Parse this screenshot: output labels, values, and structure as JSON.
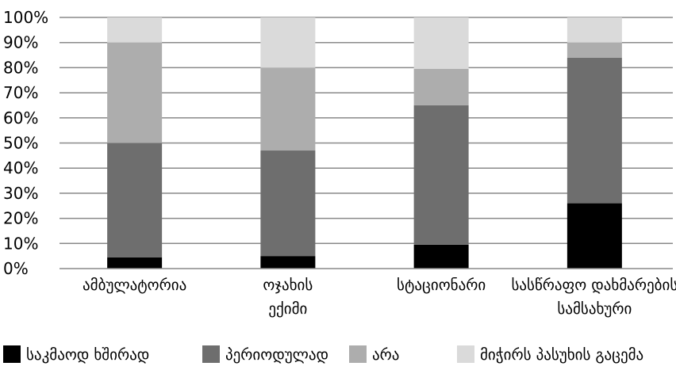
{
  "chart_data": {
    "type": "bar",
    "stacked": true,
    "percent": true,
    "categories": [
      [
        "ამბულატორია"
      ],
      [
        "ოჯახის",
        "ექიმი"
      ],
      [
        "სტაციონარი"
      ],
      [
        "სასწრაფო დახმარების",
        "სამსახური"
      ]
    ],
    "series": [
      {
        "name": "საკმაოდ ხშირად",
        "color": "#000000",
        "values": [
          4.5,
          5,
          9.5,
          26
        ]
      },
      {
        "name": "პერიოდულად",
        "color": "#6e6e6e",
        "values": [
          45.5,
          42,
          55.5,
          58
        ]
      },
      {
        "name": "არა",
        "color": "#adadad",
        "values": [
          40,
          33,
          14.5,
          6
        ]
      },
      {
        "name": "მიჭირს პასუხის გაცემა",
        "color": "#dadada",
        "values": [
          10,
          20,
          20.5,
          10
        ]
      }
    ],
    "y_ticks": [
      "0%",
      "10%",
      "20%",
      "30%",
      "40%",
      "50%",
      "60%",
      "70%",
      "80%",
      "90%",
      "100%"
    ],
    "ylim": [
      0,
      100
    ],
    "grid": true,
    "legend_position": "bottom",
    "title": "",
    "xlabel": "",
    "ylabel": ""
  }
}
